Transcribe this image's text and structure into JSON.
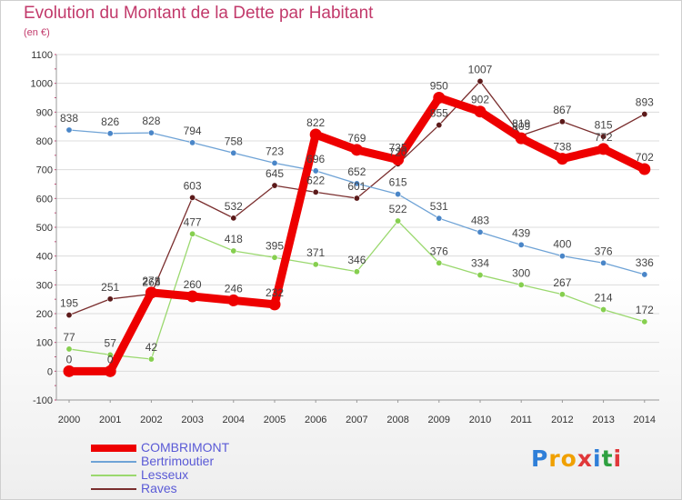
{
  "title": "Evolution du Montant de la Dette par Habitant",
  "subtitle": "(en €)",
  "logo": [
    "P",
    "r",
    "o",
    "x",
    "i",
    "t",
    "i"
  ],
  "colors": {
    "title": "#c23a6b",
    "axis_text": "#333333",
    "grid": "#dcdcdc",
    "legend_text": "#5a5ad6",
    "logo": [
      "#2f7fd8",
      "#f0a000",
      "#f0a000",
      "#e0383a",
      "#2f7fd8",
      "#2fa040",
      "#e0383a"
    ]
  },
  "chart_data": {
    "type": "line",
    "title": "Evolution du Montant de la Dette par Habitant",
    "ylabel": "(en €)",
    "x": [
      "2000",
      "2001",
      "2002",
      "2003",
      "2004",
      "2005",
      "2006",
      "2007",
      "2008",
      "2009",
      "2010",
      "2011",
      "2012",
      "2013",
      "2014"
    ],
    "ylim": [
      -100,
      1100
    ],
    "yticks": [
      -100,
      0,
      100,
      200,
      300,
      400,
      500,
      600,
      700,
      800,
      900,
      1000,
      1100
    ],
    "grid": true,
    "legend_position": "bottom-left",
    "series": [
      {
        "name": "COMBRIMONT",
        "color": "#ee0000",
        "marker": "#ee0000",
        "values": [
          0,
          0,
          273,
          260,
          246,
          232,
          822,
          769,
          735,
          950,
          902,
          809,
          738,
          772,
          702
        ],
        "labels": [
          "0",
          "0",
          "273",
          "260",
          "246",
          "232",
          "822",
          "769",
          "735",
          "950",
          "902",
          "809",
          "738",
          "772",
          "702"
        ]
      },
      {
        "name": "Bertrimoutier",
        "color": "#6fa3d6",
        "marker": "#4a86c8",
        "values": [
          838,
          826,
          828,
          794,
          758,
          723,
          696,
          652,
          615,
          531,
          483,
          439,
          400,
          376,
          336
        ],
        "labels": [
          "838",
          "826",
          "828",
          "794",
          "758",
          "723",
          "696",
          "652",
          "615",
          "531",
          "483",
          "439",
          "400",
          "376",
          "336"
        ]
      },
      {
        "name": "Lesseux",
        "color": "#9ad86e",
        "marker": "#86cf4f",
        "values": [
          77,
          57,
          42,
          477,
          418,
          395,
          371,
          346,
          522,
          376,
          334,
          300,
          267,
          214,
          172
        ],
        "labels": [
          "77",
          "57",
          "42",
          "477",
          "418",
          "395",
          "371",
          "346",
          "522",
          "376",
          "334",
          "300",
          "267",
          "214",
          "172"
        ]
      },
      {
        "name": "Raves",
        "color": "#7a2e2e",
        "marker": "#5c1a1a",
        "values": [
          195,
          251,
          268,
          603,
          532,
          645,
          622,
          601,
          720,
          855,
          1007,
          819,
          867,
          815,
          893
        ],
        "labels": [
          "195",
          "251",
          "268",
          "603",
          "532",
          "645",
          "622",
          "601",
          "720",
          "855",
          "1007",
          "819",
          "867",
          "815",
          "893"
        ]
      }
    ]
  }
}
